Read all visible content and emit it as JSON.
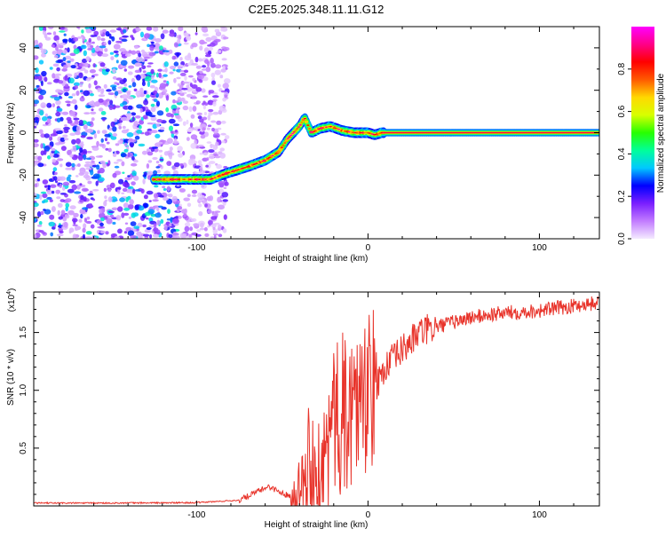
{
  "title": "C2E5.2025.348.11.11.G12",
  "chart_data": [
    {
      "type": "heatmap",
      "title": "C2E5.2025.348.11.11.G12",
      "xlabel": "Height of straight line (km)",
      "ylabel": "Frequency (Hz)",
      "xlim": [
        -195,
        135
      ],
      "ylim": [
        -50,
        50
      ],
      "xticks": [
        -100,
        0,
        100
      ],
      "xtick_labels": [
        "-100",
        "0",
        "100"
      ],
      "yticks": [
        40,
        20,
        0,
        -20,
        -40
      ],
      "ytick_labels": [
        "40",
        "20",
        "0",
        "-20",
        "-40"
      ],
      "colorbar": {
        "label": "Normalized spectral amplitude",
        "range": [
          0,
          1
        ],
        "ticks": [
          0.0,
          0.2,
          0.4,
          0.6,
          0.8
        ],
        "tick_labels": [
          "0.0",
          "0.2",
          "0.4",
          "0.6",
          "0.8"
        ],
        "colors": [
          "#f4eaff",
          "#c27cff",
          "#7a1fff",
          "#0000ff",
          "#00c8ff",
          "#00ff9a",
          "#28ff00",
          "#d8ff00",
          "#ffd800",
          "#ff5a00",
          "#ff0000",
          "#ff0088",
          "#ff00ff"
        ]
      },
      "ridge_x": [
        -125,
        -100,
        -92,
        -82,
        -70,
        -60,
        -52,
        -47,
        -40,
        -37,
        -33,
        -28,
        -22,
        -15,
        -8,
        -4,
        0,
        4,
        8,
        10,
        135
      ],
      "ridge_y": [
        -22,
        -22,
        -22,
        -19,
        -16,
        -13,
        -9,
        -3,
        3,
        7,
        0,
        2,
        3,
        1,
        0,
        0,
        0,
        -1,
        0,
        0,
        0
      ],
      "noise_region_x": [
        -195,
        -82
      ]
    },
    {
      "type": "line",
      "xlabel": "Height of straight line (km)",
      "ylabel": "SNR (10 * v/v)",
      "y_multiplier_label": "(x10",
      "y_multiplier_exp": "4",
      "xlim": [
        -195,
        135
      ],
      "ylim": [
        0,
        18500
      ],
      "xticks": [
        -100,
        0,
        100
      ],
      "xtick_labels": [
        "-100",
        "0",
        "100"
      ],
      "yticks": [
        5000,
        10000,
        15000
      ],
      "ytick_labels": [
        "0.5",
        "1.0",
        "1.5"
      ],
      "series": [
        {
          "name": "SNR",
          "color": "#e8332a",
          "x": [
            -195,
            -150,
            -100,
            -75,
            -65,
            -58,
            -50,
            -42,
            -38,
            -32,
            -28,
            -22,
            -15,
            -8,
            0,
            5,
            10,
            20,
            30,
            45,
            60,
            80,
            100,
            120,
            135
          ],
          "y": [
            250,
            250,
            280,
            500,
            1200,
            1700,
            1100,
            700,
            2500,
            5500,
            2500,
            6500,
            8000,
            9000,
            9500,
            10500,
            12000,
            13500,
            15000,
            15700,
            16300,
            16700,
            16900,
            17300,
            17600
          ]
        }
      ]
    }
  ]
}
